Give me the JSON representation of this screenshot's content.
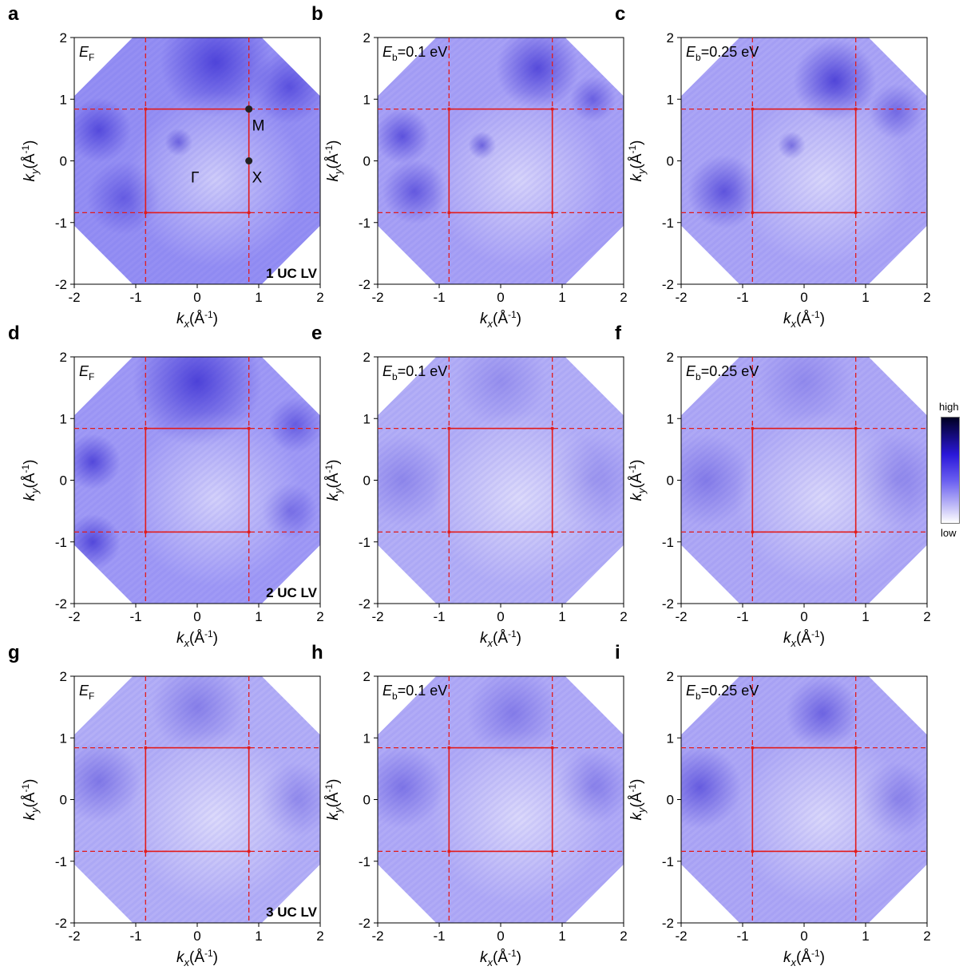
{
  "figure": {
    "colorbar": {
      "high_label": "high",
      "low_label": "low",
      "colors": [
        "#000022",
        "#2a17d9",
        "#5b50ec",
        "#a39ef2",
        "#ffffff"
      ]
    },
    "red_color": "#e21b1b"
  },
  "panels": [
    {
      "letter": "a",
      "energy_label": "F",
      "energy_prefix": "E",
      "energy_value": "",
      "sample": "1 UC LV",
      "points": [
        "M",
        "X",
        "Γ"
      ]
    },
    {
      "letter": "b",
      "energy_label": "b",
      "energy_prefix": "E",
      "energy_value": "=0.1 eV",
      "sample": ""
    },
    {
      "letter": "c",
      "energy_label": "b",
      "energy_prefix": "E",
      "energy_value": "=0.25 eV",
      "sample": ""
    },
    {
      "letter": "d",
      "energy_label": "F",
      "energy_prefix": "E",
      "energy_value": "",
      "sample": "2 UC LV"
    },
    {
      "letter": "e",
      "energy_label": "b",
      "energy_prefix": "E",
      "energy_value": "=0.1 eV",
      "sample": ""
    },
    {
      "letter": "f",
      "energy_label": "b",
      "energy_prefix": "E",
      "energy_value": "=0.25 eV",
      "sample": ""
    },
    {
      "letter": "g",
      "energy_label": "F",
      "energy_prefix": "E",
      "energy_value": "",
      "sample": "3 UC LV"
    },
    {
      "letter": "h",
      "energy_label": "b",
      "energy_prefix": "E",
      "energy_value": "=0.1 eV",
      "sample": ""
    },
    {
      "letter": "i",
      "energy_label": "b",
      "energy_prefix": "E",
      "energy_value": "=0.25 eV",
      "sample": ""
    }
  ],
  "axes": {
    "ticks": [
      "-2",
      "-1",
      "0",
      "1",
      "2"
    ],
    "xlabel": {
      "k": "k",
      "sub": "x",
      "unit": "(Å",
      "exp": "-1",
      "close": ")"
    },
    "ylabel": {
      "k": "k",
      "sub": "y",
      "unit": "(Å",
      "exp": "-1",
      "close": ")"
    },
    "range": [
      -2,
      2
    ],
    "bz_boundary": 0.84
  }
}
